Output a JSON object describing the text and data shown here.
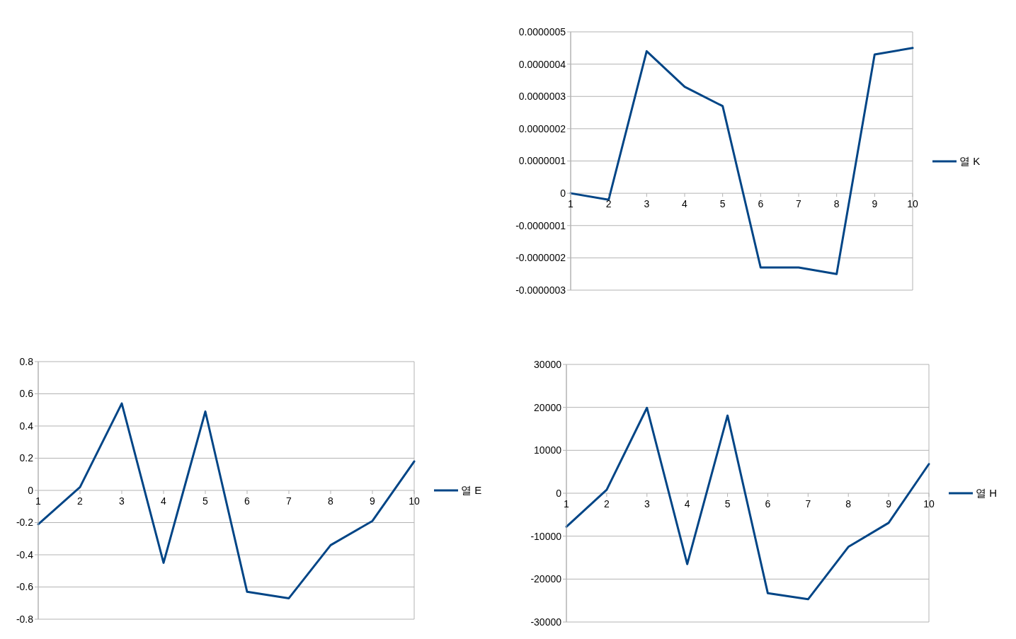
{
  "chart_data": [
    {
      "type": "line",
      "categories": [
        "1",
        "2",
        "3",
        "4",
        "5",
        "6",
        "7",
        "8",
        "9",
        "10"
      ],
      "series": [
        {
          "name": "열 K",
          "color": "#004586",
          "values": [
            0,
            -2e-08,
            4.4e-07,
            3.3e-07,
            2.7e-07,
            -2.3e-07,
            -2.3e-07,
            -2.5e-07,
            4.3e-07,
            4.5e-07
          ]
        }
      ],
      "ylim": [
        -3e-07,
        5e-07
      ],
      "yticks": [
        {
          "value": -3e-07,
          "label": "-0.0000003"
        },
        {
          "value": -2e-07,
          "label": "-0.0000002"
        },
        {
          "value": -1e-07,
          "label": "-0.0000001"
        },
        0,
        {
          "value": 1e-07,
          "label": "0.0000001"
        },
        {
          "value": 2e-07,
          "label": "0.0000002"
        },
        {
          "value": 3e-07,
          "label": "0.0000003"
        },
        {
          "value": 4e-07,
          "label": "0.0000004"
        },
        {
          "value": 5e-07,
          "label": "0.0000005"
        }
      ],
      "grid": "y",
      "legend": "right",
      "marker": "none",
      "line_style": "solid"
    },
    {
      "type": "line",
      "categories": [
        "1",
        "2",
        "3",
        "4",
        "5",
        "6",
        "7",
        "8",
        "9",
        "10"
      ],
      "series": [
        {
          "name": "열 E",
          "color": "#004586",
          "values": [
            -0.21,
            0.02,
            0.54,
            -0.45,
            0.49,
            -0.63,
            -0.67,
            -0.34,
            -0.19,
            0.18
          ]
        }
      ],
      "ylim": [
        -0.8,
        0.8
      ],
      "yticks": [
        -0.8,
        -0.6,
        -0.4,
        -0.2,
        0,
        0.2,
        0.4,
        0.6,
        0.8
      ],
      "grid": "y",
      "legend": "right",
      "marker": "none",
      "line_style": "solid"
    },
    {
      "type": "line",
      "categories": [
        "1",
        "2",
        "3",
        "4",
        "5",
        "6",
        "7",
        "8",
        "9",
        "10"
      ],
      "series": [
        {
          "name": "열 H",
          "color": "#004586",
          "values": [
            -7800,
            800,
            19900,
            -16500,
            18100,
            -23300,
            -24700,
            -12500,
            -6900,
            6800
          ]
        }
      ],
      "ylim": [
        -30000,
        30000
      ],
      "yticks": [
        -30000,
        -20000,
        -10000,
        0,
        10000,
        20000,
        30000
      ],
      "grid": "y",
      "legend": "right",
      "marker": "none",
      "line_style": "solid"
    }
  ]
}
